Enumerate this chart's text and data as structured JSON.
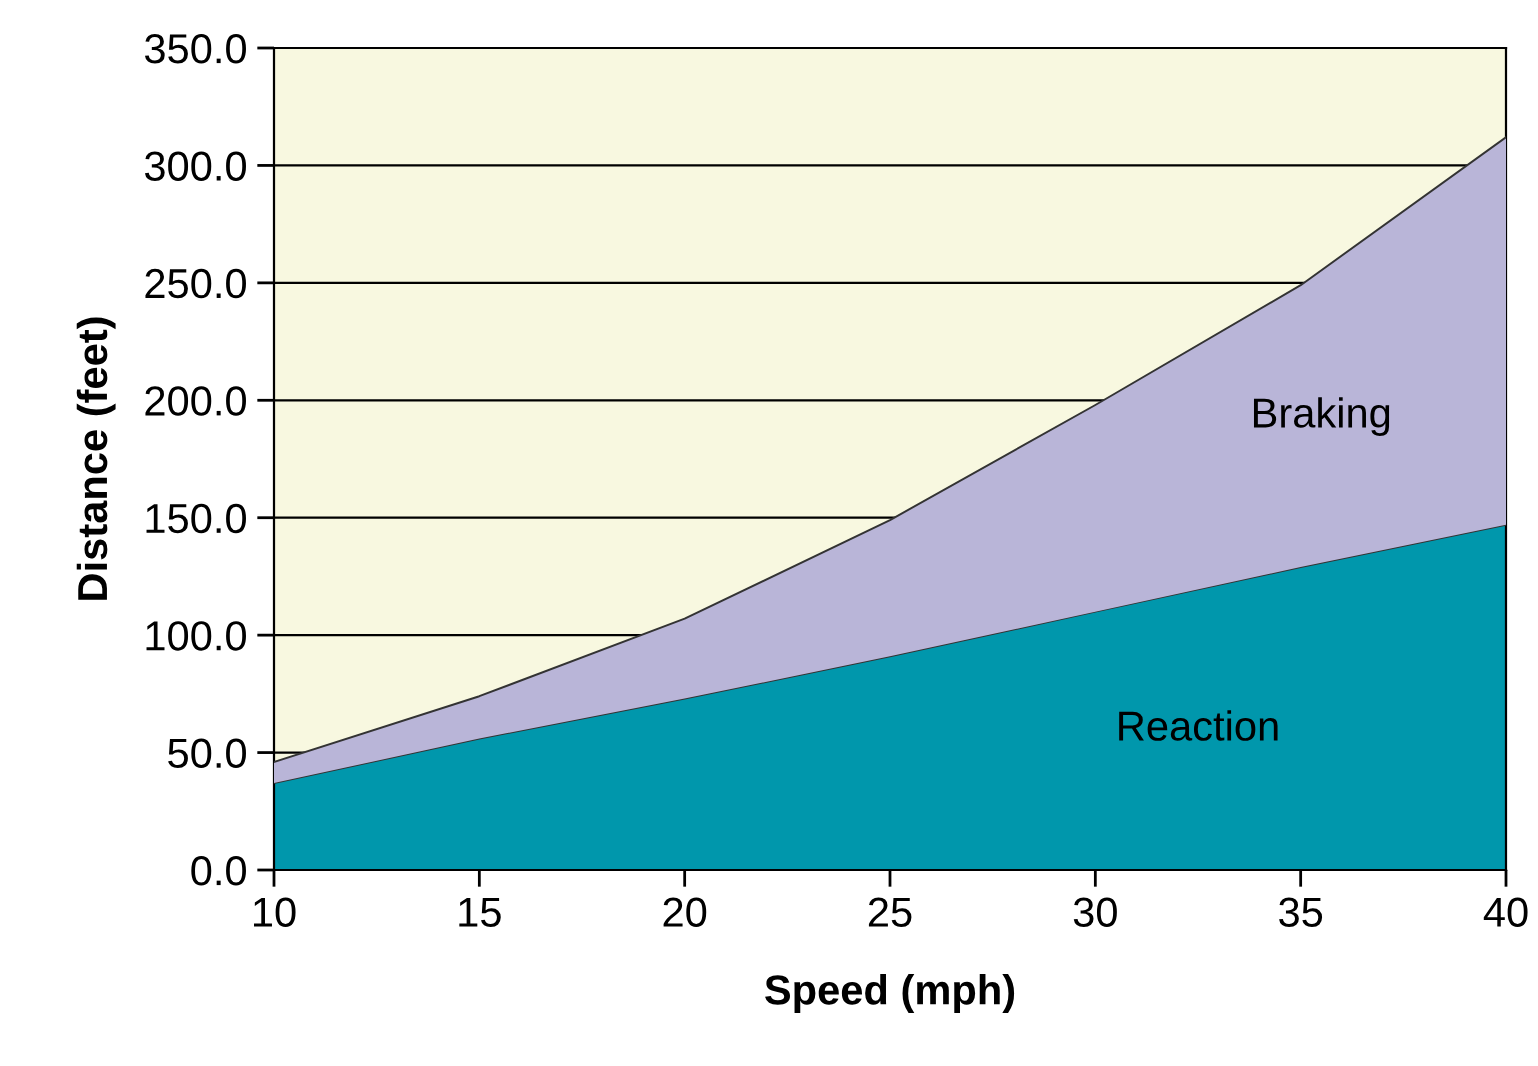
{
  "chart_data": {
    "type": "area",
    "stacked": true,
    "xlabel": "Speed (mph)",
    "ylabel": "Distance (feet)",
    "x": [
      10,
      15,
      20,
      25,
      30,
      35,
      40
    ],
    "series": [
      {
        "name": "Reaction",
        "color": "#0097ac",
        "values": [
          37,
          56,
          73,
          91,
          110,
          129,
          147
        ]
      },
      {
        "name": "Braking",
        "color": "#b9b5d8",
        "values": [
          9,
          18,
          34,
          58,
          88,
          120,
          165
        ]
      }
    ],
    "xlim": [
      10,
      40
    ],
    "xticks": [
      10,
      15,
      20,
      25,
      30,
      35,
      40
    ],
    "ylim": [
      0,
      350
    ],
    "yticks": [
      {
        "value": 0,
        "label": "0.0"
      },
      {
        "value": 50,
        "label": "50.0"
      },
      {
        "value": 100,
        "label": "100.0"
      },
      {
        "value": 150,
        "label": "150.0"
      },
      {
        "value": 200,
        "label": "200.0"
      },
      {
        "value": 250,
        "label": "250.0"
      },
      {
        "value": 300,
        "label": "300.0"
      },
      {
        "value": 350,
        "label": "350.0"
      }
    ],
    "grid": "y",
    "legend": false
  }
}
